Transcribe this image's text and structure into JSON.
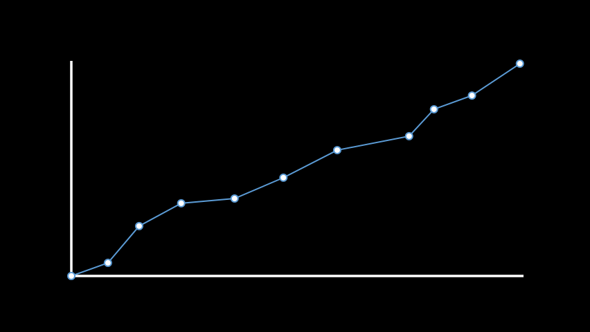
{
  "chart_data": {
    "type": "line",
    "x": [
      0,
      8.1,
      15.0,
      24.3,
      36.1,
      46.9,
      58.8,
      74.7,
      80.2,
      88.6,
      99.2
    ],
    "series": [
      {
        "color": "#5b9bd5",
        "values": [
          0,
          6.1,
          23.2,
          33.8,
          36.0,
          45.7,
          58.5,
          65.0,
          77.5,
          83.9,
          98.7
        ]
      }
    ],
    "xlim": [
      0,
      100
    ],
    "ylim": [
      0,
      100
    ],
    "axis_color": "#ffffff",
    "background": "#000000",
    "marker_fill": "#ffffff"
  }
}
